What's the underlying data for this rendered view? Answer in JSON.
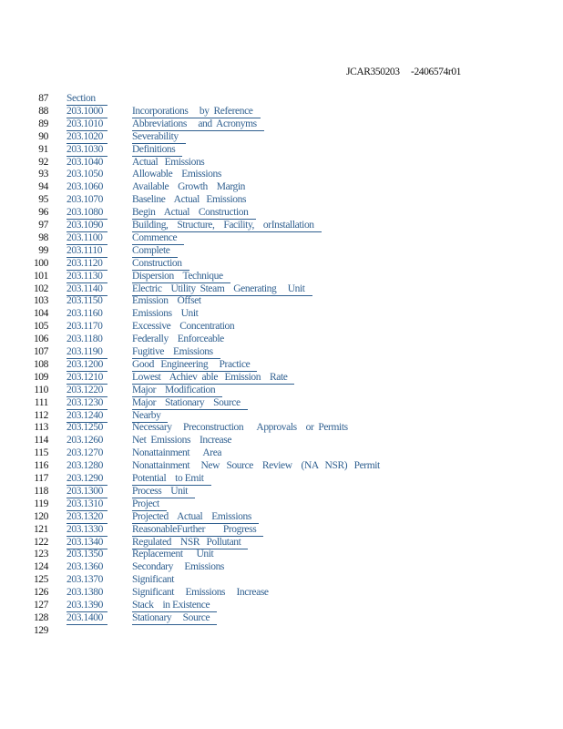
{
  "header": {
    "doc_id": "JCAR350203",
    "revision": "-2406574r01"
  },
  "rows": [
    {
      "line": "87",
      "section": "Section",
      "title": "",
      "section_ul": true,
      "title_ul": false
    },
    {
      "line": "88",
      "section": "203.1000",
      "title": "Incorporations     by  Reference",
      "section_ul": true,
      "title_ul": true
    },
    {
      "line": "89",
      "section": "203.1010",
      "title": "Abbreviations     and  Acronyms",
      "section_ul": true,
      "title_ul": true
    },
    {
      "line": "90",
      "section": "203.1020",
      "title": "Severability",
      "section_ul": true,
      "title_ul": true
    },
    {
      "line": "91",
      "section": "203.1030",
      "title": "Definitions",
      "section_ul": true,
      "title_ul": true
    },
    {
      "line": "92",
      "section": "203.1040",
      "title": "Actual   Emissions",
      "section_ul": false,
      "title_ul": false
    },
    {
      "line": "93",
      "section": "203.1050",
      "title": "Allowable    Emissions",
      "section_ul": false,
      "title_ul": false
    },
    {
      "line": "94",
      "section": "203.1060",
      "title": "Available    Growth    Margin",
      "section_ul": false,
      "title_ul": false
    },
    {
      "line": "95",
      "section": "203.1070",
      "title": "Baseline    Actual   Emissions",
      "section_ul": false,
      "title_ul": false
    },
    {
      "line": "96",
      "section": "203.1080",
      "title": "Begin    Actual    Construction",
      "section_ul": true,
      "title_ul": true
    },
    {
      "line": "97",
      "section": "203.1090",
      "title": "Building,    Structure,    Facility,    orInstallation",
      "section_ul": true,
      "title_ul": true
    },
    {
      "line": "98",
      "section": "203.1100",
      "title": "Commence",
      "section_ul": true,
      "title_ul": true
    },
    {
      "line": "99",
      "section": "203.1110",
      "title": "Complete",
      "section_ul": true,
      "title_ul": true
    },
    {
      "line": "100",
      "section": "203.1120",
      "title": "Construction",
      "section_ul": true,
      "title_ul": true
    },
    {
      "line": "101",
      "section": "203.1130",
      "title": "Dispersion    Technique",
      "section_ul": true,
      "title_ul": true
    },
    {
      "line": "102",
      "section": "203.1140",
      "title": "Electric    Utility  Steam    Generating     Unit",
      "section_ul": true,
      "title_ul": true
    },
    {
      "line": "103",
      "section": "203.1150",
      "title": "Emission    Offset",
      "section_ul": false,
      "title_ul": false
    },
    {
      "line": "104",
      "section": "203.1160",
      "title": "Emissions    Unit",
      "section_ul": false,
      "title_ul": false
    },
    {
      "line": "105",
      "section": "203.1170",
      "title": "Excessive    Concentration",
      "section_ul": false,
      "title_ul": false
    },
    {
      "line": "106",
      "section": "203.1180",
      "title": "Federally    Enforceable",
      "section_ul": false,
      "title_ul": false
    },
    {
      "line": "107",
      "section": "203.1190",
      "title": "Fugitive    Emissions",
      "section_ul": true,
      "title_ul": true
    },
    {
      "line": "108",
      "section": "203.1200",
      "title": "Good   Engineering     Practice",
      "section_ul": true,
      "title_ul": true
    },
    {
      "line": "109",
      "section": "203.1210",
      "title": "Lowest    Achiev  able   Emission    Rate",
      "section_ul": true,
      "title_ul": true
    },
    {
      "line": "110",
      "section": "203.1220",
      "title": "Major    Modification",
      "section_ul": true,
      "title_ul": true
    },
    {
      "line": "111",
      "section": "203.1230",
      "title": "Major    Stationary    Source",
      "section_ul": true,
      "title_ul": true
    },
    {
      "line": "112",
      "section": "203.1240",
      "title": "Nearby",
      "section_ul": true,
      "title_ul": true
    },
    {
      "line": "113",
      "section": "203.1250",
      "title": "Necessary     Preconstruction      Approvals    or  Permits",
      "section_ul": false,
      "title_ul": false
    },
    {
      "line": "114",
      "section": "203.1260",
      "title": "Net  Emissions    Increase",
      "section_ul": false,
      "title_ul": false
    },
    {
      "line": "115",
      "section": "203.1270",
      "title": "Nonattainment      Area",
      "section_ul": false,
      "title_ul": false
    },
    {
      "line": "116",
      "section": "203.1280",
      "title": "Nonattainment     New   Source    Review    (NA   NSR)   Permit",
      "section_ul": false,
      "title_ul": false
    },
    {
      "line": "117",
      "section": "203.1290",
      "title": "Potential    to Emit",
      "section_ul": true,
      "title_ul": true
    },
    {
      "line": "118",
      "section": "203.1300",
      "title": "Process    Unit",
      "section_ul": true,
      "title_ul": true
    },
    {
      "line": "119",
      "section": "203.1310",
      "title": "Project",
      "section_ul": true,
      "title_ul": true
    },
    {
      "line": "120",
      "section": "203.1320",
      "title": "Projected    Actual    Emissions",
      "section_ul": true,
      "title_ul": true
    },
    {
      "line": "121",
      "section": "203.1330",
      "title": "ReasonableFurther        Progress",
      "section_ul": true,
      "title_ul": true
    },
    {
      "line": "122",
      "section": "203.1340",
      "title": "Regulated    NSR   Pollutant",
      "section_ul": true,
      "title_ul": true
    },
    {
      "line": "123",
      "section": "203.1350",
      "title": "Replacement      Unit",
      "section_ul": false,
      "title_ul": false
    },
    {
      "line": "124",
      "section": "203.1360",
      "title": "Secondary     Emissions",
      "section_ul": false,
      "title_ul": false
    },
    {
      "line": "125",
      "section": "203.1370",
      "title": "Significant",
      "section_ul": false,
      "title_ul": false
    },
    {
      "line": "126",
      "section": "203.1380",
      "title": "Significant     Emissions     Increase",
      "section_ul": false,
      "title_ul": false
    },
    {
      "line": "127",
      "section": "203.1390",
      "title": "Stack    in Existence",
      "section_ul": true,
      "title_ul": true
    },
    {
      "line": "128",
      "section": "203.1400",
      "title": "Stationary     Source",
      "section_ul": true,
      "title_ul": true
    },
    {
      "line": "129",
      "section": "",
      "title": "",
      "section_ul": false,
      "title_ul": false
    }
  ]
}
